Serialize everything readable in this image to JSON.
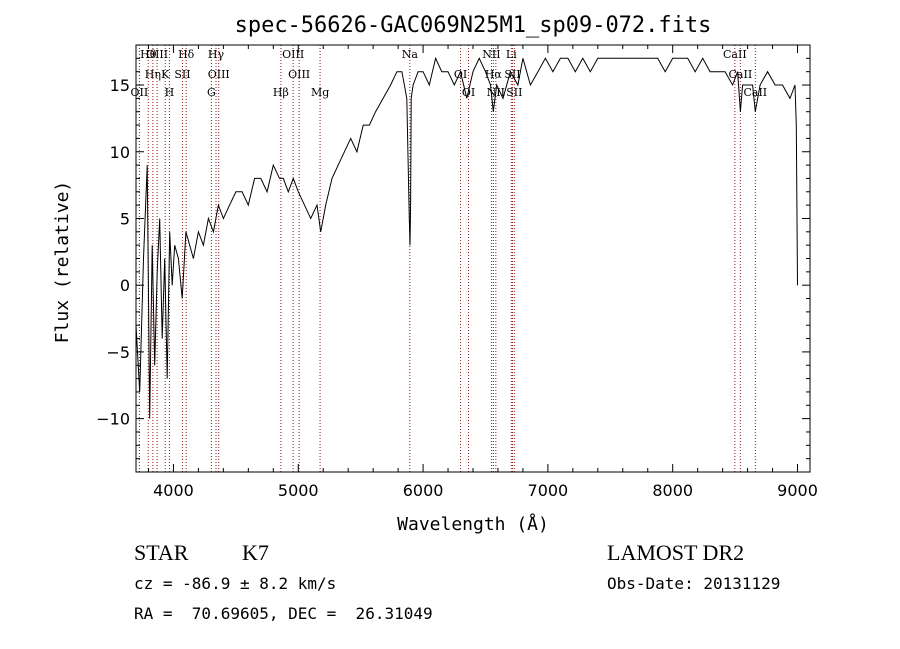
{
  "chart_data": {
    "type": "line",
    "title": "spec-56626-GAC069N25M1_sp09-072.fits",
    "xlabel": "Wavelength (Å)",
    "ylabel": "Flux (relative)",
    "xlim": [
      3700,
      9100
    ],
    "ylim": [
      -14,
      18
    ],
    "xticks": [
      4000,
      5000,
      6000,
      7000,
      8000,
      9000
    ],
    "yticks": [
      -10,
      -5,
      0,
      5,
      10,
      15
    ],
    "grid": false,
    "line_color": "#000000",
    "marker_color": "#8b1a1a",
    "spectrum": {
      "x": [
        3700,
        3730,
        3760,
        3790,
        3810,
        3830,
        3850,
        3870,
        3890,
        3910,
        3930,
        3950,
        3970,
        3990,
        4010,
        4040,
        4070,
        4100,
        4130,
        4160,
        4200,
        4240,
        4280,
        4320,
        4360,
        4400,
        4450,
        4500,
        4550,
        4600,
        4650,
        4700,
        4750,
        4800,
        4850,
        4880,
        4920,
        4960,
        5000,
        5050,
        5100,
        5150,
        5180,
        5220,
        5270,
        5320,
        5370,
        5420,
        5470,
        5520,
        5570,
        5620,
        5680,
        5740,
        5790,
        5830,
        5870,
        5890,
        5895,
        5900,
        5905,
        5920,
        5960,
        6000,
        6050,
        6100,
        6150,
        6200,
        6250,
        6300,
        6350,
        6400,
        6450,
        6500,
        6540,
        6563,
        6590,
        6640,
        6700,
        6760,
        6800,
        6860,
        6920,
        6980,
        7040,
        7100,
        7160,
        7220,
        7280,
        7340,
        7400,
        7460,
        7520,
        7580,
        7640,
        7700,
        7760,
        7820,
        7880,
        7940,
        8000,
        8060,
        8120,
        8180,
        8240,
        8300,
        8360,
        8420,
        8480,
        8520,
        8542,
        8560,
        8600,
        8640,
        8662,
        8700,
        8760,
        8820,
        8880,
        8940,
        8980,
        8990,
        9000
      ],
      "y": [
        -3,
        -8,
        2,
        9,
        -10,
        3,
        -6,
        1,
        5,
        -4,
        2,
        -7,
        4,
        0,
        3,
        2,
        -1,
        4,
        3,
        2,
        4,
        3,
        5,
        4,
        6,
        5,
        6,
        7,
        7,
        6,
        8,
        8,
        7,
        9,
        8,
        8,
        7,
        8,
        7,
        6,
        5,
        6,
        4,
        6,
        8,
        9,
        10,
        11,
        10,
        12,
        12,
        13,
        14,
        15,
        16,
        16,
        14,
        5,
        3,
        6,
        14,
        15,
        16,
        16,
        15,
        17,
        16,
        16,
        15,
        16,
        14,
        16,
        17,
        16,
        15,
        13,
        15,
        14,
        16,
        15,
        17,
        15,
        16,
        17,
        16,
        17,
        17,
        16,
        17,
        16,
        17,
        17,
        17,
        17,
        17,
        17,
        17,
        17,
        17,
        16,
        17,
        17,
        17,
        16,
        17,
        16,
        16,
        16,
        15,
        16,
        13,
        15,
        15,
        15,
        13,
        15,
        16,
        15,
        15,
        14,
        15,
        12,
        0
      ]
    },
    "lines": [
      {
        "w": 3798,
        "label": "Hθ"
      },
      {
        "w": 3835,
        "label": "Hη"
      },
      {
        "w": 3727,
        "label": "OII"
      },
      {
        "w": 3869,
        "label": "OIII"
      },
      {
        "w": 3934,
        "label": "K"
      },
      {
        "w": 3968,
        "label": "H"
      },
      {
        "w": 4102,
        "label": "Hδ"
      },
      {
        "w": 4072,
        "label": "SII"
      },
      {
        "w": 4304,
        "label": "G"
      },
      {
        "w": 4341,
        "label": "Hγ"
      },
      {
        "w": 4363,
        "label": "OIII"
      },
      {
        "w": 4861,
        "label": "Hβ"
      },
      {
        "w": 4959,
        "label": "OIII"
      },
      {
        "w": 5007,
        "label": "OIII"
      },
      {
        "w": 5175,
        "label": "Mg"
      },
      {
        "w": 5894,
        "label": "Na"
      },
      {
        "w": 6300,
        "label": "OI"
      },
      {
        "w": 6364,
        "label": "OI"
      },
      {
        "w": 6548,
        "label": "NII"
      },
      {
        "w": 6563,
        "label": "Hα"
      },
      {
        "w": 6583,
        "label": "NII"
      },
      {
        "w": 6707,
        "label": "Li"
      },
      {
        "w": 6716,
        "label": "SII"
      },
      {
        "w": 6731,
        "label": "SII"
      },
      {
        "w": 8498,
        "label": "CaII"
      },
      {
        "w": 8542,
        "label": "CaII"
      },
      {
        "w": 8662,
        "label": "CaII"
      }
    ]
  },
  "info": {
    "obj_class": "STAR",
    "subclass": "K7",
    "cz": "cz = -86.9 ± 8.2 km/s",
    "survey": "LAMOST DR2",
    "obs_date": "Obs-Date: 20131129",
    "radec": "RA =  70.69605, DEC =  26.31049"
  }
}
